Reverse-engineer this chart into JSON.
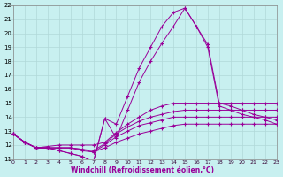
{
  "title": "",
  "xlabel": "Windchill (Refroidissement éolien,°C)",
  "ylabel": "",
  "bg_color": "#c8f0f0",
  "grid_color": "#b0d8d8",
  "line_color": "#990099",
  "xlim": [
    -0.5,
    23
  ],
  "ylim": [
    11,
    22
  ],
  "xticks": [
    0,
    1,
    2,
    3,
    4,
    5,
    6,
    7,
    8,
    9,
    10,
    11,
    12,
    13,
    14,
    15,
    16,
    17,
    18,
    19,
    20,
    21,
    22,
    23
  ],
  "yticks": [
    11,
    12,
    13,
    14,
    15,
    16,
    17,
    18,
    19,
    20,
    21,
    22
  ],
  "series": [
    [
      12.8,
      12.2,
      11.8,
      11.8,
      11.8,
      11.8,
      11.6,
      11.5,
      11.8,
      12.2,
      12.5,
      12.8,
      13.0,
      13.2,
      13.4,
      13.5,
      13.5,
      13.5,
      13.5,
      13.5,
      13.5,
      13.5,
      13.5,
      13.5
    ],
    [
      12.8,
      12.2,
      11.8,
      11.8,
      11.8,
      11.8,
      11.7,
      11.5,
      12.0,
      12.6,
      13.0,
      13.4,
      13.6,
      13.8,
      14.0,
      14.0,
      14.0,
      14.0,
      14.0,
      14.0,
      14.0,
      14.0,
      14.0,
      14.0
    ],
    [
      12.8,
      12.2,
      11.8,
      11.8,
      11.8,
      11.8,
      11.7,
      11.6,
      12.1,
      12.8,
      13.3,
      13.7,
      14.0,
      14.2,
      14.4,
      14.5,
      14.5,
      14.5,
      14.5,
      14.5,
      14.5,
      14.5,
      14.5,
      14.5
    ],
    [
      12.8,
      12.2,
      11.8,
      11.9,
      12.0,
      12.0,
      12.0,
      12.0,
      12.2,
      12.9,
      13.5,
      14.0,
      14.5,
      14.8,
      15.0,
      15.0,
      15.0,
      15.0,
      15.0,
      15.0,
      15.0,
      15.0,
      15.0,
      15.0
    ],
    [
      12.8,
      12.2,
      11.8,
      11.8,
      11.6,
      11.4,
      11.2,
      10.8,
      13.9,
      12.5,
      14.5,
      16.5,
      18.0,
      19.3,
      20.5,
      21.8,
      20.5,
      19.2,
      15.0,
      14.8,
      14.5,
      14.2,
      14.0,
      13.8
    ],
    [
      12.8,
      12.2,
      11.8,
      11.8,
      11.6,
      11.4,
      11.2,
      10.8,
      13.9,
      13.5,
      15.5,
      17.5,
      19.0,
      20.5,
      21.5,
      21.8,
      20.5,
      19.0,
      14.8,
      14.5,
      14.2,
      14.0,
      13.8,
      13.5
    ]
  ]
}
